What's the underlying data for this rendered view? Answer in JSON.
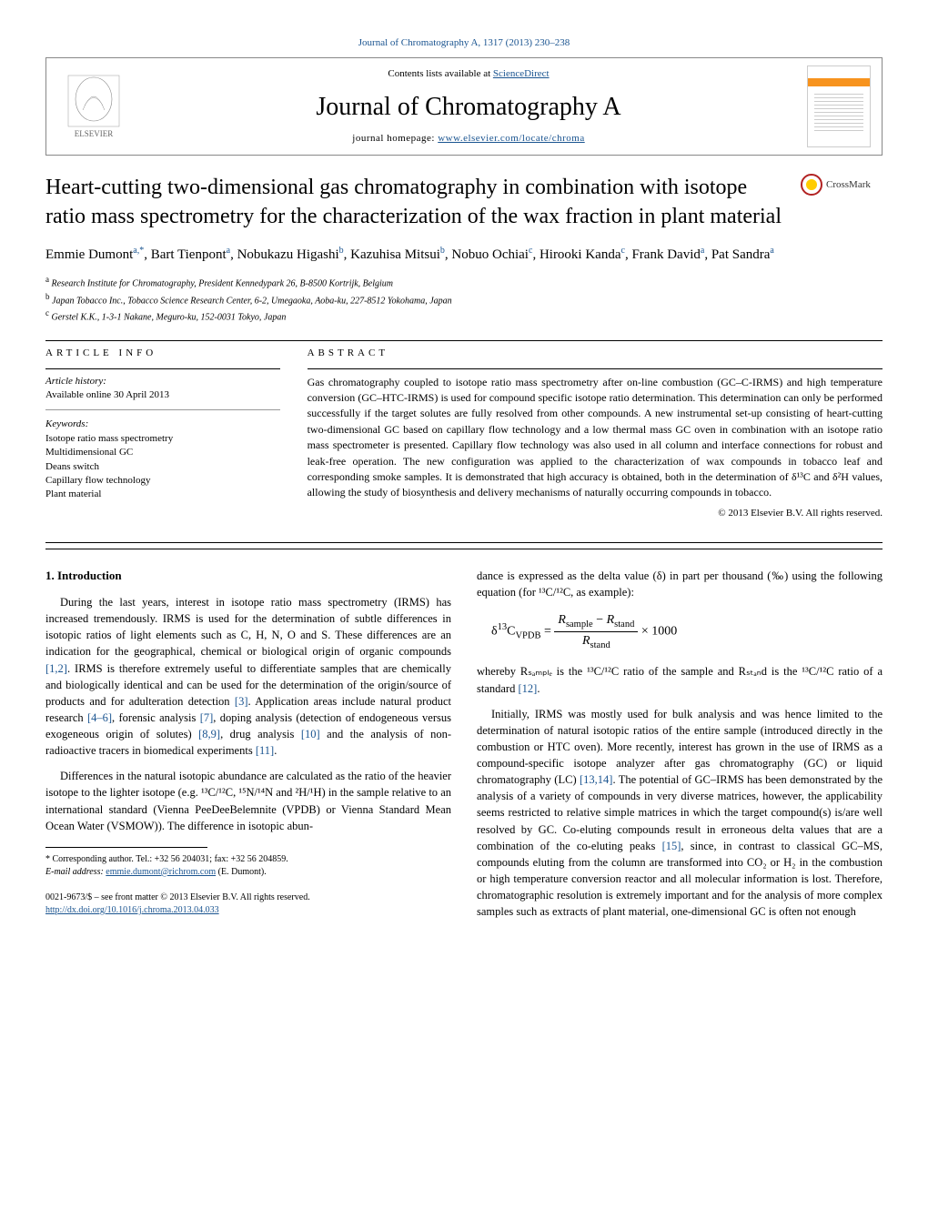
{
  "top_link": "Journal of Chromatography A, 1317 (2013) 230–238",
  "header": {
    "publisher": "ELSEVIER",
    "contents_prefix": "Contents lists available at ",
    "contents_link": "ScienceDirect",
    "journal_name": "Journal of Chromatography A",
    "homepage_prefix": "journal homepage: ",
    "homepage_link": "www.elsevier.com/locate/chroma"
  },
  "crossmark_label": "CrossMark",
  "title": "Heart-cutting two-dimensional gas chromatography in combination with isotope ratio mass spectrometry for the characterization of the wax fraction in plant material",
  "authors_html": "Emmie Dumont<sup>a,*</sup>, Bart Tienpont<sup>a</sup>, Nobukazu Higashi<sup>b</sup>, Kazuhisa Mitsui<sup>b</sup>, Nobuo Ochiai<sup>c</sup>, Hirooki Kanda<sup>c</sup>, Frank David<sup>a</sup>, Pat Sandra<sup>a</sup>",
  "affiliations": [
    {
      "sup": "a",
      "text": "Research Institute for Chromatography, President Kennedypark 26, B-8500 Kortrijk, Belgium"
    },
    {
      "sup": "b",
      "text": "Japan Tobacco Inc., Tobacco Science Research Center, 6-2, Umegaoka, Aoba-ku, 227-8512 Yokohama, Japan"
    },
    {
      "sup": "c",
      "text": "Gerstel K.K., 1-3-1 Nakane, Meguro-ku, 152-0031 Tokyo, Japan"
    }
  ],
  "article_info": {
    "head": "ARTICLE INFO",
    "history_label": "Article history:",
    "history_text": "Available online 30 April 2013",
    "keywords_label": "Keywords:",
    "keywords": [
      "Isotope ratio mass spectrometry",
      "Multidimensional GC",
      "Deans switch",
      "Capillary flow technology",
      "Plant material"
    ]
  },
  "abstract": {
    "head": "ABSTRACT",
    "text": "Gas chromatography coupled to isotope ratio mass spectrometry after on-line combustion (GC–C-IRMS) and high temperature conversion (GC–HTC-IRMS) is used for compound specific isotope ratio determination. This determination can only be performed successfully if the target solutes are fully resolved from other compounds. A new instrumental set-up consisting of heart-cutting two-dimensional GC based on capillary flow technology and a low thermal mass GC oven in combination with an isotope ratio mass spectrometer is presented. Capillary flow technology was also used in all column and interface connections for robust and leak-free operation. The new configuration was applied to the characterization of wax compounds in tobacco leaf and corresponding smoke samples. It is demonstrated that high accuracy is obtained, both in the determination of δ¹³C and δ²H values, allowing the study of biosynthesis and delivery mechanisms of naturally occurring compounds in tobacco.",
    "copyright": "© 2013 Elsevier B.V. All rights reserved."
  },
  "body": {
    "intro_head": "1. Introduction",
    "col1_p1": "During the last years, interest in isotope ratio mass spectrometry (IRMS) has increased tremendously. IRMS is used for the determination of subtle differences in isotopic ratios of light elements such as C, H, N, O and S. These differences are an indication for the geographical, chemical or biological origin of organic compounds [1,2]. IRMS is therefore extremely useful to differentiate samples that are chemically and biologically identical and can be used for the determination of the origin/source of products and for adulteration detection [3]. Application areas include natural product research [4–6], forensic analysis [7], doping analysis (detection of endogeneous versus exogeneous origin of solutes) [8,9], drug analysis [10] and the analysis of non-radioactive tracers in biomedical experiments [11].",
    "col1_p2": "Differences in the natural isotopic abundance are calculated as the ratio of the heavier isotope to the lighter isotope (e.g. ¹³C/¹²C, ¹⁵N/¹⁴N and ²H/¹H) in the sample relative to an international standard (Vienna PeeDeeBelemnite (VPDB) or Vienna Standard Mean Ocean Water (VSMOW)). The difference in isotopic abun-",
    "col2_pre_eq": "dance is expressed as the delta value (δ) in part per thousand (‰) using the following equation (for ¹³C/¹²C, as example):",
    "col2_post_eq": "whereby Rₛₐₘₚₗₑ is the ¹³C/¹²C ratio of the sample and Rₛₜₐₙd is the ¹³C/¹²C ratio of a standard [12].",
    "col2_p2": "Initially, IRMS was mostly used for bulk analysis and was hence limited to the determination of natural isotopic ratios of the entire sample (introduced directly in the combustion or HTC oven). More recently, interest has grown in the use of IRMS as a compound-specific isotope analyzer after gas chromatography (GC) or liquid chromatography (LC) [13,14]. The potential of GC–IRMS has been demonstrated by the analysis of a variety of compounds in very diverse matrices, however, the applicability seems restricted to relative simple matrices in which the target compound(s) is/are well resolved by GC. Co-eluting compounds result in erroneous delta values that are a combination of the co-eluting peaks [15], since, in contrast to classical GC–MS, compounds eluting from the column are transformed into CO₂ or H₂ in the combustion or high temperature conversion reactor and all molecular information is lost. Therefore, chromatographic resolution is extremely important and for the analysis of more complex samples such as extracts of plant material, one-dimensional GC is often not enough"
  },
  "footnote": {
    "corr": "* Corresponding author. Tel.: +32 56 204031; fax: +32 56 204859.",
    "email_label": "E-mail address: ",
    "email": "emmie.dumont@richrom.com",
    "email_suffix": " (E. Dumont)."
  },
  "bottom": {
    "issn": "0021-9673/$ – see front matter © 2013 Elsevier B.V. All rights reserved.",
    "doi": "http://dx.doi.org/10.1016/j.chroma.2013.04.033"
  },
  "colors": {
    "link": "#1a5490",
    "accent": "#f7931e",
    "crossmark_outer": "#b22222",
    "crossmark_inner": "#ffcc00"
  }
}
